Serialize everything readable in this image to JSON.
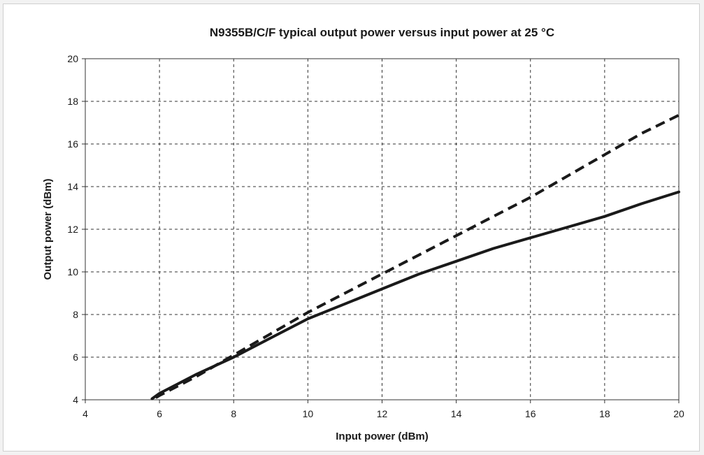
{
  "chart_data": {
    "type": "line",
    "title": "N9355B/C/F typical output power versus input power at 25 °C",
    "xlabel": "Input power (dBm)",
    "ylabel": "Output power (dBm)",
    "xlim": [
      4,
      20
    ],
    "ylim": [
      4,
      20
    ],
    "xticks": [
      "4",
      "6",
      "8",
      "10",
      "12",
      "14",
      "16",
      "18",
      "20"
    ],
    "yticks": [
      "4",
      "6",
      "8",
      "10",
      "12",
      "14",
      "16",
      "18",
      "20"
    ],
    "grid": true,
    "grid_style": "dashed",
    "legend": "none",
    "series": [
      {
        "style": "dashed",
        "color": "#1a1a1a",
        "x": [
          5.9,
          6,
          7,
          8,
          9,
          10,
          11,
          12,
          13,
          14,
          15,
          16,
          17,
          18,
          19,
          20
        ],
        "y": [
          4.1,
          4.2,
          5.1,
          6.1,
          7.1,
          8.1,
          9.0,
          9.9,
          10.8,
          11.7,
          12.6,
          13.5,
          14.5,
          15.5,
          16.5,
          17.35
        ]
      },
      {
        "style": "solid",
        "color": "#1a1a1a",
        "x": [
          5.8,
          6,
          7,
          8,
          9,
          10,
          11,
          12,
          13,
          14,
          15,
          16,
          17,
          18,
          19,
          20
        ],
        "y": [
          4.05,
          4.3,
          5.2,
          6.0,
          6.9,
          7.8,
          8.5,
          9.2,
          9.9,
          10.5,
          11.1,
          11.6,
          12.1,
          12.6,
          13.2,
          13.75
        ]
      }
    ]
  }
}
